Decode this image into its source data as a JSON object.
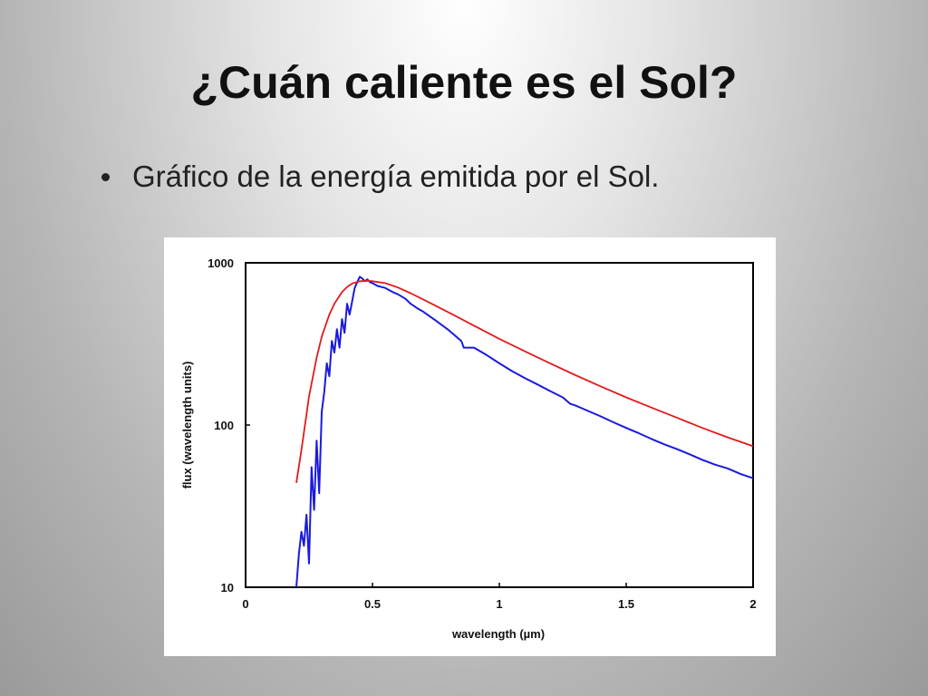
{
  "slide": {
    "title": "¿Cuán caliente  es el Sol?",
    "bullet": "Gráfico de la energía emitida por el Sol."
  },
  "chart_data": {
    "type": "line",
    "title": "",
    "xlabel": "wavelength (µm)",
    "ylabel": "flux (wavelength units)",
    "xlim": [
      0,
      2
    ],
    "ylim": [
      10,
      1000
    ],
    "y_scale": "log",
    "grid": false,
    "x_ticks": [
      {
        "value": 0,
        "label": "0"
      },
      {
        "value": 0.5,
        "label": "0.5"
      },
      {
        "value": 1,
        "label": "1"
      },
      {
        "value": 1.5,
        "label": "1.5"
      },
      {
        "value": 2,
        "label": "2"
      }
    ],
    "y_ticks": [
      {
        "value": 10,
        "label": "10"
      },
      {
        "value": 100,
        "label": "100"
      },
      {
        "value": 1000,
        "label": "1000"
      }
    ],
    "series": [
      {
        "color": "#1a1adf",
        "x": [
          0.2,
          0.21,
          0.22,
          0.23,
          0.24,
          0.25,
          0.26,
          0.27,
          0.28,
          0.29,
          0.3,
          0.31,
          0.32,
          0.33,
          0.34,
          0.35,
          0.36,
          0.37,
          0.38,
          0.39,
          0.4,
          0.41,
          0.42,
          0.43,
          0.44,
          0.45,
          0.46,
          0.47,
          0.48,
          0.49,
          0.5,
          0.52,
          0.55,
          0.58,
          0.6,
          0.63,
          0.65,
          0.68,
          0.7,
          0.75,
          0.8,
          0.85,
          0.86,
          0.9,
          0.95,
          1.0,
          1.05,
          1.1,
          1.15,
          1.2,
          1.25,
          1.28,
          1.3,
          1.35,
          1.4,
          1.45,
          1.5,
          1.55,
          1.6,
          1.65,
          1.7,
          1.75,
          1.8,
          1.85,
          1.9,
          1.95,
          2.0
        ],
        "y": [
          10,
          16,
          22,
          18,
          28,
          14,
          55,
          30,
          80,
          38,
          120,
          160,
          240,
          200,
          330,
          280,
          390,
          300,
          450,
          370,
          560,
          480,
          580,
          700,
          760,
          820,
          800,
          770,
          790,
          760,
          750,
          720,
          700,
          660,
          640,
          600,
          560,
          520,
          500,
          440,
          385,
          330,
          300,
          300,
          270,
          240,
          215,
          195,
          178,
          162,
          148,
          135,
          132,
          122,
          113,
          104,
          96,
          89,
          82,
          76,
          71,
          66,
          61,
          57,
          54,
          50,
          47
        ]
      },
      {
        "color": "#e31a1c",
        "x": [
          0.2,
          0.22,
          0.25,
          0.28,
          0.3,
          0.33,
          0.35,
          0.38,
          0.4,
          0.42,
          0.45,
          0.48,
          0.5,
          0.55,
          0.6,
          0.65,
          0.7,
          0.8,
          0.9,
          1.0,
          1.1,
          1.2,
          1.3,
          1.4,
          1.5,
          1.6,
          1.7,
          1.8,
          1.9,
          2.0
        ],
        "y": [
          44,
          70,
          150,
          260,
          350,
          480,
          560,
          660,
          710,
          745,
          770,
          775,
          770,
          750,
          705,
          650,
          595,
          495,
          410,
          340,
          285,
          240,
          203,
          173,
          148,
          128,
          111,
          96,
          84,
          74
        ]
      }
    ]
  }
}
